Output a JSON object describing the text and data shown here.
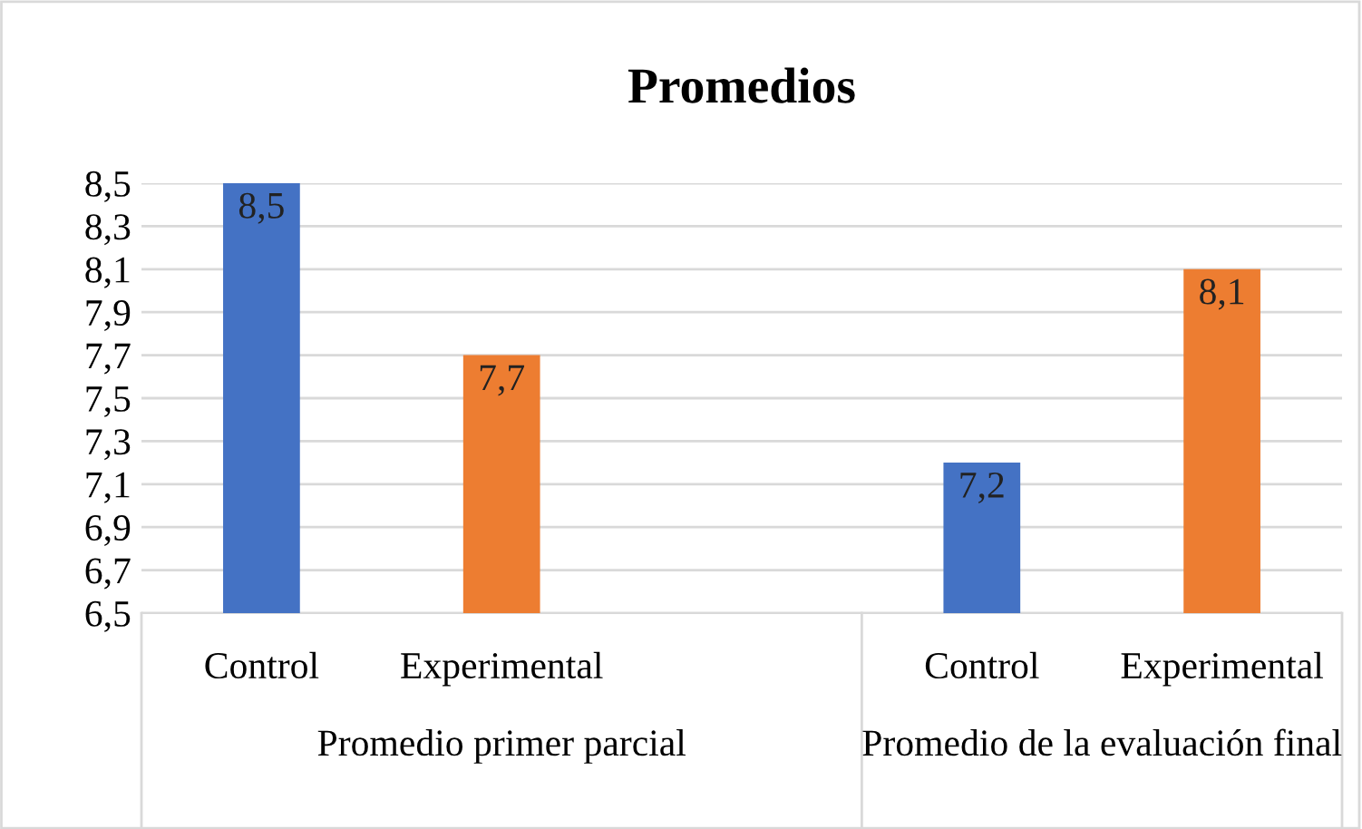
{
  "chart_data": {
    "type": "bar",
    "title": "Promedios",
    "categories": [
      "Control",
      "Experimental",
      null,
      "Control",
      "Experimental"
    ],
    "values": [
      8.5,
      7.7,
      null,
      7.2,
      8.1
    ],
    "colors": [
      "#4472c4",
      "#ed7d31",
      null,
      "#4472c4",
      "#ed7d31"
    ],
    "value_labels": [
      "8,5",
      "7,7",
      null,
      "7,2",
      "8,1"
    ],
    "annotations": [
      "Promedio primer parcial",
      "Promedio de la evaluación final"
    ],
    "ylim": [
      6.5,
      8.5
    ],
    "yticks": [
      {
        "value": 6.5,
        "label": "6,5"
      },
      {
        "value": 6.7,
        "label": "6,7"
      },
      {
        "value": 6.9,
        "label": "6,9"
      },
      {
        "value": 7.1,
        "label": "7,1"
      },
      {
        "value": 7.3,
        "label": "7,3"
      },
      {
        "value": 7.5,
        "label": "7,5"
      },
      {
        "value": 7.7,
        "label": "7,7"
      },
      {
        "value": 7.9,
        "label": "7,9"
      },
      {
        "value": 8.1,
        "label": "8,1"
      },
      {
        "value": 8.3,
        "label": "8,3"
      },
      {
        "value": 8.5,
        "label": "8,5"
      }
    ],
    "grid": "y"
  }
}
